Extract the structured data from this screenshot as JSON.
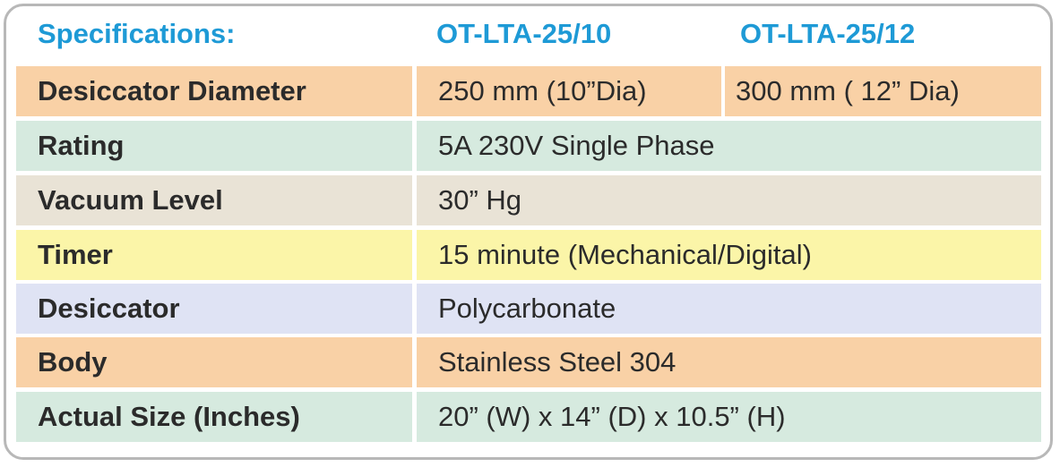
{
  "header": {
    "label": "Specifications:",
    "models": [
      "OT-LTA-25/10",
      "OT-LTA-25/12"
    ]
  },
  "table": {
    "rows": [
      [
        "Desiccator Diameter",
        "250 mm (10”Dia)",
        "300 mm ( 12” Dia)"
      ],
      [
        "Rating",
        "5A 230V Single Phase"
      ],
      [
        "Vacuum Level",
        "30” Hg"
      ],
      [
        "Timer",
        "15 minute (Mechanical/Digital)"
      ],
      [
        "Desiccator",
        "Polycarbonate"
      ],
      [
        "Body",
        "Stainless Steel 304"
      ],
      [
        "Actual Size (Inches)",
        "20” (W) x 14” (D) x 10.5” (H)"
      ]
    ]
  }
}
